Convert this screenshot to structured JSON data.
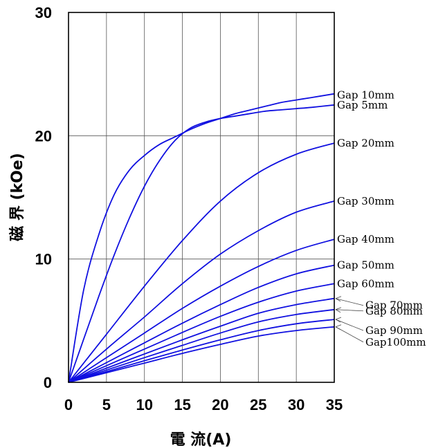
{
  "chart_data": {
    "type": "line",
    "title": "",
    "xlabel": "電 流(A)",
    "ylabel": "磁 界 (kOe)",
    "xlim": [
      0,
      35
    ],
    "ylim": [
      0,
      30
    ],
    "xticks": [
      "0",
      "5",
      "10",
      "15",
      "20",
      "25",
      "30",
      "35"
    ],
    "yticks": [
      "0",
      "10",
      "20",
      "30"
    ],
    "grid": true,
    "line_color": "#1010e0",
    "series": [
      {
        "name": "Gap  10mm",
        "x": [
          0,
          2,
          4,
          6,
          8,
          10,
          12,
          14,
          16,
          18,
          20,
          22,
          24,
          26,
          28,
          30,
          32,
          35
        ],
        "y": [
          0,
          7.5,
          12,
          15.2,
          17.2,
          18.4,
          19.3,
          19.9,
          20.5,
          21.0,
          21.4,
          21.8,
          22.1,
          22.4,
          22.7,
          22.9,
          23.1,
          23.4
        ]
      },
      {
        "name": "Gap   5mm",
        "x": [
          0,
          2,
          4,
          6,
          8,
          10,
          12,
          14,
          16,
          18,
          20,
          22,
          24,
          26,
          28,
          30,
          32,
          35
        ],
        "y": [
          0,
          3.5,
          7,
          10.3,
          13.3,
          15.9,
          18,
          19.6,
          20.6,
          21.1,
          21.4,
          21.6,
          21.8,
          22.0,
          22.1,
          22.2,
          22.3,
          22.5
        ]
      },
      {
        "name": "Gap  20mm",
        "x": [
          0,
          5,
          10,
          15,
          20,
          25,
          30,
          35
        ],
        "y": [
          0,
          3.9,
          7.8,
          11.5,
          14.7,
          17.0,
          18.5,
          19.4
        ]
      },
      {
        "name": "Gap  30mm",
        "x": [
          0,
          5,
          10,
          15,
          20,
          25,
          30,
          35
        ],
        "y": [
          0,
          2.7,
          5.3,
          8.0,
          10.4,
          12.3,
          13.8,
          14.7
        ]
      },
      {
        "name": "Gap  40mm",
        "x": [
          0,
          5,
          10,
          15,
          20,
          25,
          30,
          35
        ],
        "y": [
          0,
          2.0,
          4.0,
          6.0,
          7.8,
          9.4,
          10.7,
          11.6
        ]
      },
      {
        "name": "Gap  50mm",
        "x": [
          0,
          5,
          10,
          15,
          20,
          25,
          30,
          35
        ],
        "y": [
          0,
          1.6,
          3.2,
          4.8,
          6.3,
          7.7,
          8.8,
          9.5
        ]
      },
      {
        "name": "Gap  60mm",
        "x": [
          0,
          5,
          10,
          15,
          20,
          25,
          30,
          35
        ],
        "y": [
          0,
          1.35,
          2.7,
          4.05,
          5.35,
          6.5,
          7.4,
          8.0
        ]
      },
      {
        "name": "Gap  70mm",
        "x": [
          0,
          5,
          10,
          15,
          20,
          25,
          30,
          35
        ],
        "y": [
          0,
          1.15,
          2.3,
          3.45,
          4.55,
          5.6,
          6.3,
          6.8
        ]
      },
      {
        "name": "Gap  80mm",
        "x": [
          0,
          5,
          10,
          15,
          20,
          25,
          30,
          35
        ],
        "y": [
          0,
          1.0,
          2.0,
          3.0,
          4.0,
          4.9,
          5.5,
          5.9
        ]
      },
      {
        "name": "Gap  90mm",
        "x": [
          0,
          5,
          10,
          15,
          20,
          25,
          30,
          35
        ],
        "y": [
          0,
          0.87,
          1.75,
          2.62,
          3.45,
          4.2,
          4.75,
          5.1
        ]
      },
      {
        "name": "Gap100mm",
        "x": [
          0,
          5,
          10,
          15,
          20,
          25,
          30,
          35
        ],
        "y": [
          0,
          0.78,
          1.56,
          2.35,
          3.08,
          3.75,
          4.2,
          4.5
        ]
      }
    ]
  }
}
